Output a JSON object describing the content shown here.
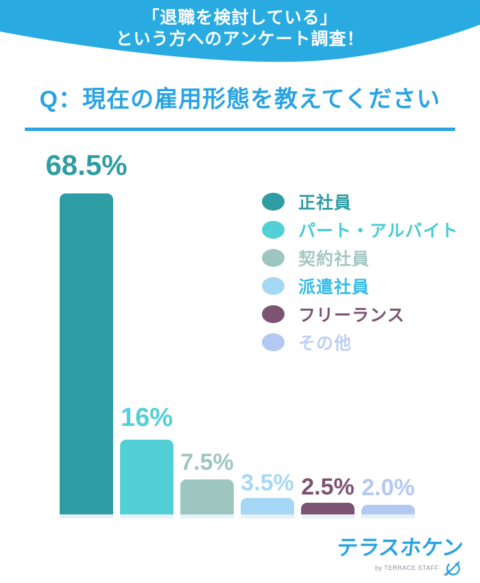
{
  "banner": {
    "line1": "「退職を検討している」",
    "line2": "という方へのアンケート調査！",
    "bg_color": "#29ABE2",
    "text_color": "#FFFFFF"
  },
  "question": {
    "title": "Q：現在の雇用形態を教えてください",
    "accent_color": "#29A3E3"
  },
  "chart_data": {
    "type": "bar",
    "title": "Q：現在の雇用形態を教えてください",
    "categories": [
      "正社員",
      "パート・アルバイト",
      "契約社員",
      "派遣社員",
      "フリーランス",
      "その他"
    ],
    "values": [
      68.5,
      16,
      7.5,
      3.5,
      2.5,
      2.0
    ],
    "value_labels": [
      "68.5%",
      "16%",
      "7.5%",
      "3.5%",
      "2.5%",
      "2.0%"
    ],
    "bar_colors": [
      "#2E9DA4",
      "#52D0D6",
      "#9EC6C0",
      "#A5D8F5",
      "#7C5371",
      "#B3C8F2"
    ],
    "legend_text_colors": [
      "#2E9DA4",
      "#45CCD2",
      "#A3C8C2",
      "#38BCE8",
      "#7C5371",
      "#BCCFF5"
    ],
    "legend_position": "upper right",
    "xlabel": "",
    "ylabel": "",
    "x_axis_visible": false,
    "y_axis_visible": false,
    "grid": false,
    "ylim": [
      0,
      79
    ]
  },
  "footer": {
    "logo_text": "テラスホケン",
    "logo_subtext": "by TERRACE STAFF",
    "logo_color": "#29A3E3"
  }
}
